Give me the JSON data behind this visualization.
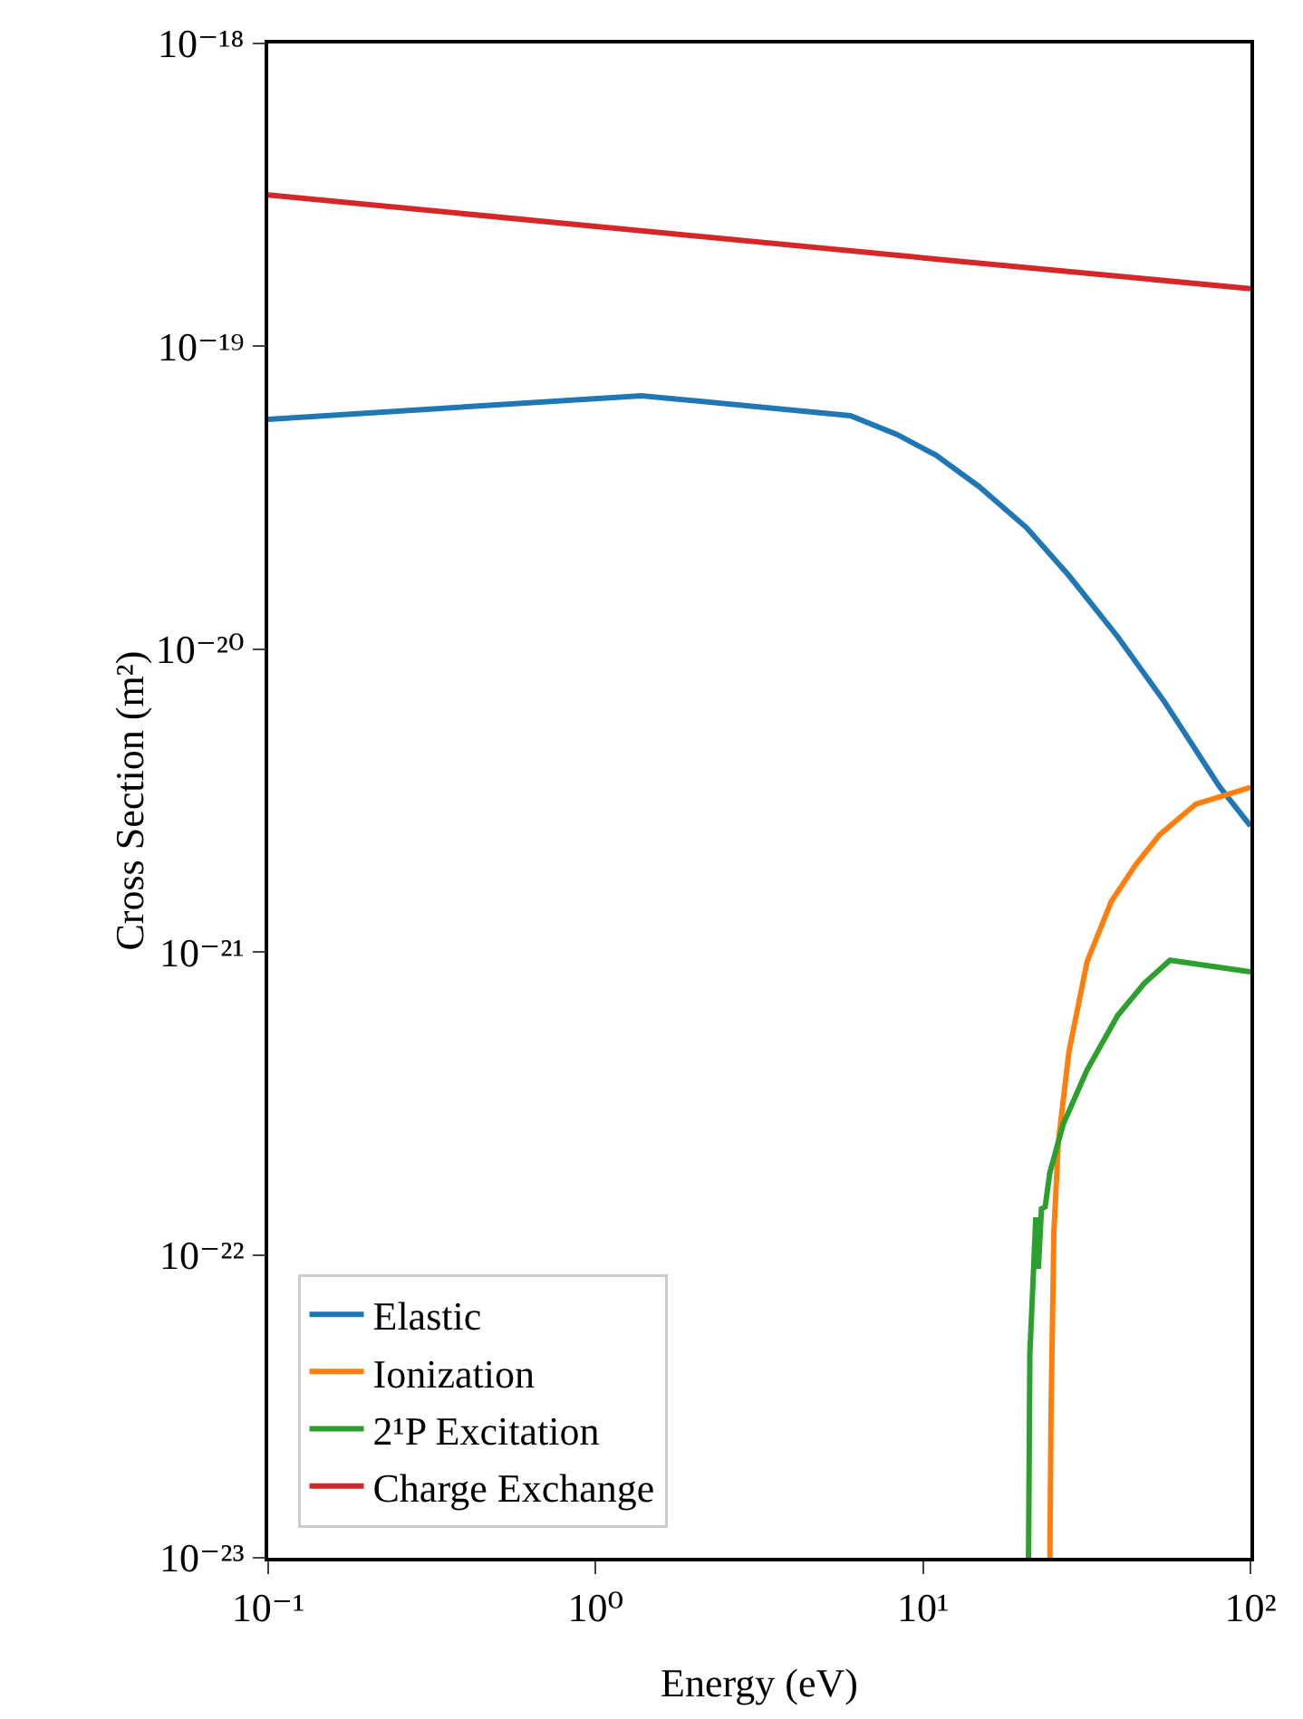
{
  "chart_data": {
    "type": "line",
    "xlabel": "Energy (eV)",
    "ylabel": "Cross Section (m²)",
    "log": "xy",
    "grid": false,
    "legend": "bottom left",
    "marker": "none",
    "line_style": "solid",
    "xlim": [
      0.1,
      100
    ],
    "xticks": [
      {
        "value": 0.1,
        "label": "10⁻¹"
      },
      {
        "value": 1,
        "label": "10⁰"
      },
      {
        "value": 10,
        "label": "10¹"
      },
      {
        "value": 100,
        "label": "10²"
      }
    ],
    "ylim": [
      1e-23,
      1e-18
    ],
    "yticks": [
      {
        "value": 1e-23,
        "label": "10⁻²³"
      },
      {
        "value": 1e-22,
        "label": "10⁻²²"
      },
      {
        "value": 1e-21,
        "label": "10⁻²¹"
      },
      {
        "value": 1e-20,
        "label": "10⁻²⁰"
      },
      {
        "value": 1e-19,
        "label": "10⁻¹⁹"
      },
      {
        "value": 1e-18,
        "label": "10⁻¹⁸"
      }
    ],
    "series": [
      {
        "name": "Elastic",
        "color": "#1f77b4",
        "x": [
          0.1,
          1.38,
          6.0,
          8.32,
          10.96,
          14.8,
          20.7,
          27.9,
          39.3,
          54.8,
          80.4,
          100
        ],
        "values": [
          5.74e-20,
          6.87e-20,
          5.9e-20,
          5.12e-20,
          4.37e-20,
          3.45e-20,
          2.52e-20,
          1.75e-20,
          1.1e-20,
          6.67e-21,
          3.52e-21,
          2.61e-21
        ]
      },
      {
        "name": "Ionization",
        "color": "#ff7f0e",
        "x": [
          24.4,
          24.6,
          25.1,
          25.9,
          27.9,
          31.7,
          37.6,
          44.6,
          52.8,
          68.1,
          100
        ],
        "values": [
          1e-23,
          3e-23,
          1.19e-22,
          2.36e-22,
          4.69e-22,
          9.3e-22,
          1.47e-21,
          1.94e-21,
          2.44e-21,
          3.08e-21,
          3.5e-21
        ]
      },
      {
        "name": "2¹P Excitation",
        "color": "#2ca02c",
        "x": [
          21.0,
          21.2,
          21.8,
          22.1,
          22.5,
          23.0,
          23.6,
          24.4,
          26.8,
          31.7,
          39.3,
          47.5,
          56.8,
          100
        ],
        "values": [
          1e-23,
          4.74e-23,
          9.4e-23,
          1.33e-22,
          9e-23,
          1.42e-22,
          1.44e-22,
          1.87e-22,
          2.7e-22,
          4.08e-22,
          6.17e-22,
          7.9e-22,
          9.4e-22,
          8.6e-22
        ]
      },
      {
        "name": "Charge Exchange",
        "color": "#d62728",
        "x": [
          0.1,
          1,
          10,
          100
        ],
        "values": [
          3.16e-19,
          2.49e-19,
          1.96e-19,
          1.55e-19
        ]
      }
    ]
  }
}
